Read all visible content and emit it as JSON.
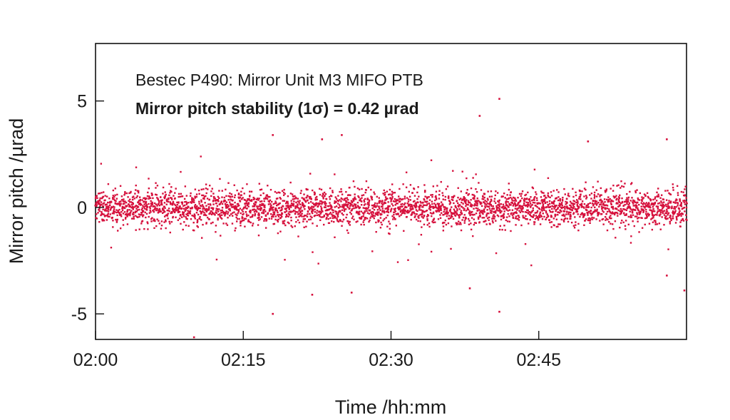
{
  "chart_data": {
    "type": "scatter",
    "xlabel": "Time /hh:mm",
    "ylabel": "Mirror pitch /µrad",
    "x_unit": "hh:mm",
    "xlim": [
      "02:00",
      "03:00"
    ],
    "ylim": [
      -6.2,
      7.7
    ],
    "x_ticks": [
      "02:00",
      "02:15",
      "02:30",
      "02:45"
    ],
    "y_ticks": [
      -5,
      0,
      5
    ],
    "y_tick_labels": [
      "-5",
      "0",
      "5"
    ],
    "grid": false,
    "legend": "none",
    "annotations": [
      "Bestec P490: Mirror Unit M3 MIFO PTB",
      "Mirror pitch stability (1σ) = 0.42 µrad"
    ],
    "series": [
      {
        "color": "#d6103c",
        "mean": 0,
        "std_dev": 0.42,
        "summary_points": [
          {
            "x": "02:00",
            "y": 0
          },
          {
            "x": "02:30",
            "y": 0
          },
          {
            "x": "03:00",
            "y": 0
          }
        ],
        "outliers": [
          {
            "x": "02:10",
            "y": -6.1
          },
          {
            "x": "02:18",
            "y": -5.0
          },
          {
            "x": "02:18",
            "y": 3.4
          },
          {
            "x": "02:22",
            "y": -4.1
          },
          {
            "x": "02:23",
            "y": 3.2
          },
          {
            "x": "02:25",
            "y": 3.4
          },
          {
            "x": "02:26",
            "y": -4.0
          },
          {
            "x": "02:38",
            "y": -3.8
          },
          {
            "x": "02:39",
            "y": 4.3
          },
          {
            "x": "02:41",
            "y": 5.1
          },
          {
            "x": "02:41",
            "y": -4.9
          },
          {
            "x": "02:50",
            "y": 3.1
          },
          {
            "x": "02:58",
            "y": 3.2
          },
          {
            "x": "02:58",
            "y": -3.2
          },
          {
            "x": "03:00",
            "y": -3.9
          }
        ]
      }
    ]
  }
}
